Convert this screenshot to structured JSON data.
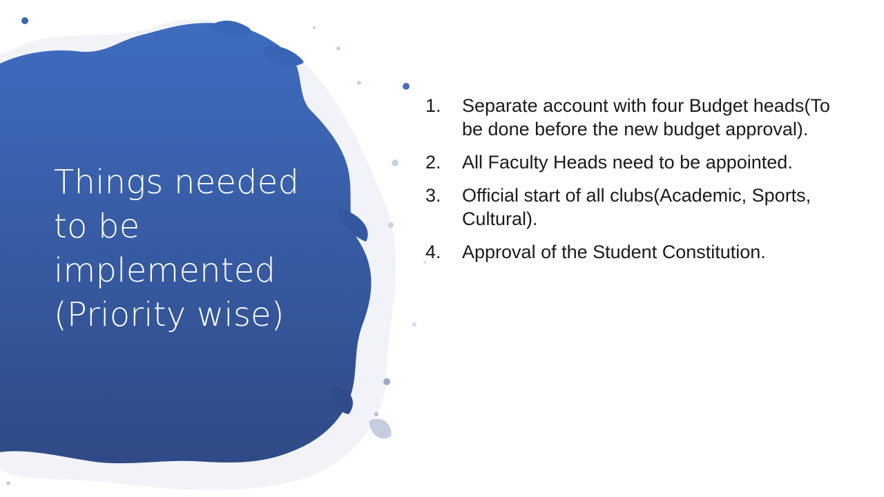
{
  "slide": {
    "title": "Things needed to be implemented (Priority wise)",
    "items": [
      {
        "number": "1.",
        "text": "Separate account with four Budget heads(To be done before the new budget approval)."
      },
      {
        "number": "2.",
        "text": "All Faculty Heads need to be appointed."
      },
      {
        "number": "3.",
        "text": "Official start of all clubs(Academic, Sports, Cultural)."
      },
      {
        "number": "4.",
        "text": "Approval of the Student Constitution."
      }
    ]
  },
  "colors": {
    "splash_top": "#3f6cc0",
    "splash_bottom": "#2f4d8a",
    "title_text": "#ffffff",
    "body_text": "#1a1a1a"
  }
}
